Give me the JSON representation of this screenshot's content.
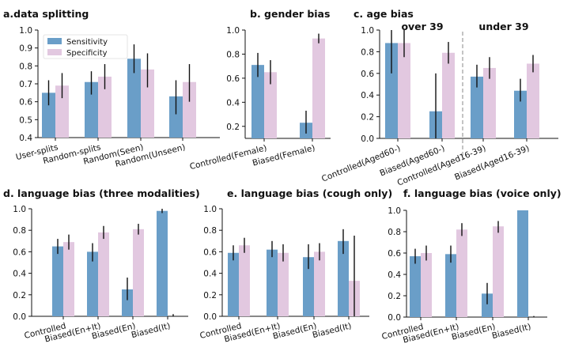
{
  "colors": {
    "sensitivity": "#6a9ec8",
    "specificity": "#e2c8e0",
    "error": "#111111"
  },
  "legend": {
    "sensitivity": "Sensitivity",
    "specificity": "Specificity"
  },
  "chart_data": [
    {
      "id": "a",
      "type": "bar",
      "title": "a.data splitting",
      "ylim": [
        0.4,
        1.0
      ],
      "yticks": [
        "0.4",
        "0.5",
        "0.6",
        "0.7",
        "0.8",
        "0.9",
        "1.0"
      ],
      "categories": [
        "User-splits",
        "Random-splits",
        "Random(Seen)",
        "Random(Unseen)"
      ],
      "series": [
        {
          "name": "Sensitivity",
          "values": [
            0.65,
            0.71,
            0.84,
            0.63
          ],
          "err_lo": [
            0.58,
            0.64,
            0.76,
            0.53
          ],
          "err_hi": [
            0.72,
            0.77,
            0.92,
            0.72
          ]
        },
        {
          "name": "Specificity",
          "values": [
            0.69,
            0.74,
            0.78,
            0.71
          ],
          "err_lo": [
            0.62,
            0.67,
            0.68,
            0.6
          ],
          "err_hi": [
            0.76,
            0.81,
            0.87,
            0.81
          ]
        }
      ],
      "legend": "top-left"
    },
    {
      "id": "b",
      "type": "bar",
      "title": "b. gender bias",
      "ylim": [
        0.1,
        1.0
      ],
      "yticks": [
        "0.2",
        "0.4",
        "0.6",
        "0.8",
        "1.0"
      ],
      "categories": [
        "Controlled(Female)",
        "Biased(Female)"
      ],
      "series": [
        {
          "name": "Sensitivity",
          "values": [
            0.71,
            0.23
          ],
          "err_lo": [
            0.61,
            0.14
          ],
          "err_hi": [
            0.81,
            0.33
          ]
        },
        {
          "name": "Specificity",
          "values": [
            0.65,
            0.93
          ],
          "err_lo": [
            0.55,
            0.89
          ],
          "err_hi": [
            0.75,
            0.97
          ]
        }
      ]
    },
    {
      "id": "c",
      "type": "bar",
      "title": "c. age bias",
      "ylim": [
        0.0,
        1.0
      ],
      "yticks": [
        "0.0",
        "0.2",
        "0.4",
        "0.6",
        "0.8",
        "1.0"
      ],
      "categories": [
        "Controlled(Aged60-)",
        "Biased(Aged60-)",
        "Controlled(Aged16-39)",
        "Biased(Aged16-39)"
      ],
      "groups": [
        "over 39",
        "under 39"
      ],
      "series": [
        {
          "name": "Sensitivity",
          "values": [
            0.88,
            0.25,
            0.57,
            0.44
          ],
          "err_lo": [
            0.6,
            0.0,
            0.47,
            0.34
          ],
          "err_hi": [
            1.0,
            0.6,
            0.68,
            0.55
          ]
        },
        {
          "name": "Specificity",
          "values": [
            0.88,
            0.79,
            0.65,
            0.69
          ],
          "err_lo": [
            0.75,
            0.69,
            0.55,
            0.61
          ],
          "err_hi": [
            1.0,
            0.89,
            0.75,
            0.77
          ]
        }
      ]
    },
    {
      "id": "d",
      "type": "bar",
      "title": "d. language bias (three modalities)",
      "ylim": [
        0.0,
        1.0
      ],
      "yticks": [
        "0.0",
        "0.2",
        "0.4",
        "0.6",
        "0.8",
        "1.0"
      ],
      "categories": [
        "Controlled",
        "Biased(En+It)",
        "Biased(En)",
        "Biased(It)"
      ],
      "series": [
        {
          "name": "Sensitivity",
          "values": [
            0.65,
            0.6,
            0.25,
            0.98
          ],
          "err_lo": [
            0.58,
            0.51,
            0.15,
            0.96
          ],
          "err_hi": [
            0.72,
            0.68,
            0.36,
            1.0
          ]
        },
        {
          "name": "Specificity",
          "values": [
            0.69,
            0.78,
            0.81,
            0.0
          ],
          "err_lo": [
            0.62,
            0.72,
            0.76,
            0.0
          ],
          "err_hi": [
            0.76,
            0.84,
            0.86,
            0.02
          ]
        }
      ]
    },
    {
      "id": "e",
      "type": "bar",
      "title": "e. language bias (cough only)",
      "ylim": [
        0.0,
        1.0
      ],
      "yticks": [
        "0.0",
        "0.2",
        "0.4",
        "0.6",
        "0.8",
        "1.0"
      ],
      "categories": [
        "Controlled",
        "Biased(En+It)",
        "Biased(En)",
        "Biased(It)"
      ],
      "series": [
        {
          "name": "Sensitivity",
          "values": [
            0.59,
            0.62,
            0.55,
            0.7
          ],
          "err_lo": [
            0.52,
            0.55,
            0.44,
            0.58
          ],
          "err_hi": [
            0.66,
            0.7,
            0.67,
            0.81
          ]
        },
        {
          "name": "Specificity",
          "values": [
            0.66,
            0.59,
            0.6,
            0.33
          ],
          "err_lo": [
            0.59,
            0.51,
            0.52,
            0.0
          ],
          "err_hi": [
            0.73,
            0.67,
            0.68,
            0.75
          ]
        }
      ]
    },
    {
      "id": "f",
      "type": "bar",
      "title": "f. language bias (voice only)",
      "ylim": [
        0.0,
        1.0
      ],
      "yticks": [
        "0.0",
        "0.2",
        "0.4",
        "0.6",
        "0.8",
        "1.0"
      ],
      "categories": [
        "Controlled",
        "Biased(En+It)",
        "Biased(En)",
        "Biased(It)"
      ],
      "series": [
        {
          "name": "Sensitivity",
          "values": [
            0.57,
            0.59,
            0.22,
            1.0
          ],
          "err_lo": [
            0.5,
            0.51,
            0.12,
            1.0
          ],
          "err_hi": [
            0.64,
            0.67,
            0.32,
            1.0
          ]
        },
        {
          "name": "Specificity",
          "values": [
            0.6,
            0.82,
            0.85,
            0.0
          ],
          "err_lo": [
            0.53,
            0.76,
            0.79,
            0.0
          ],
          "err_hi": [
            0.67,
            0.88,
            0.9,
            0.01
          ]
        }
      ]
    }
  ]
}
